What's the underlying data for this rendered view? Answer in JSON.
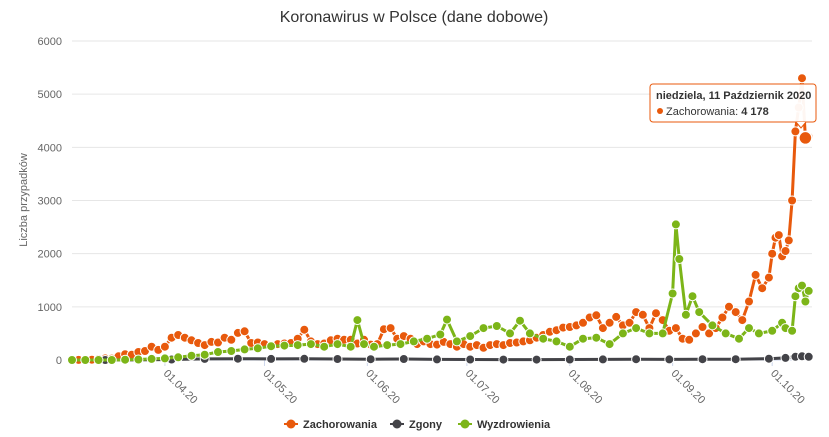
{
  "chart_data": {
    "type": "line",
    "title": "Koronawirus w Polsce (dane dobowe)",
    "ylabel": "Liczba przypadków",
    "xlabel": "",
    "x_range": [
      "2020-03-04",
      "2020-10-13"
    ],
    "ylim": [
      0,
      6000
    ],
    "y_ticks": [
      "0",
      "1000",
      "2000",
      "3000",
      "4000",
      "5000",
      "6000"
    ],
    "x_ticks": [
      {
        "label": "01.04.20",
        "date": "2020-04-01"
      },
      {
        "label": "01.05.20",
        "date": "2020-05-01"
      },
      {
        "label": "01.06.20",
        "date": "2020-06-01"
      },
      {
        "label": "01.07.20",
        "date": "2020-07-01"
      },
      {
        "label": "01.08.20",
        "date": "2020-08-01"
      },
      {
        "label": "01.09.20",
        "date": "2020-09-01"
      },
      {
        "label": "01.10.20",
        "date": "2020-10-01"
      }
    ],
    "grid": true,
    "legend_position": "bottom-center",
    "series": [
      {
        "name": "Zachorowania",
        "color": "#e8590c",
        "points": [
          [
            "2020-03-04",
            1
          ],
          [
            "2020-03-06",
            2
          ],
          [
            "2020-03-08",
            6
          ],
          [
            "2020-03-10",
            5
          ],
          [
            "2020-03-12",
            19
          ],
          [
            "2020-03-14",
            30
          ],
          [
            "2020-03-16",
            27
          ],
          [
            "2020-03-18",
            70
          ],
          [
            "2020-03-20",
            110
          ],
          [
            "2020-03-22",
            100
          ],
          [
            "2020-03-24",
            150
          ],
          [
            "2020-03-26",
            170
          ],
          [
            "2020-03-28",
            250
          ],
          [
            "2020-03-30",
            190
          ],
          [
            "2020-04-01",
            250
          ],
          [
            "2020-04-03",
            420
          ],
          [
            "2020-04-05",
            470
          ],
          [
            "2020-04-07",
            420
          ],
          [
            "2020-04-09",
            370
          ],
          [
            "2020-04-11",
            320
          ],
          [
            "2020-04-13",
            280
          ],
          [
            "2020-04-15",
            340
          ],
          [
            "2020-04-17",
            330
          ],
          [
            "2020-04-19",
            420
          ],
          [
            "2020-04-21",
            380
          ],
          [
            "2020-04-23",
            510
          ],
          [
            "2020-04-25",
            540
          ],
          [
            "2020-04-27",
            320
          ],
          [
            "2020-04-29",
            330
          ],
          [
            "2020-05-01",
            300
          ],
          [
            "2020-05-03",
            260
          ],
          [
            "2020-05-05",
            300
          ],
          [
            "2020-05-07",
            310
          ],
          [
            "2020-05-09",
            320
          ],
          [
            "2020-05-11",
            400
          ],
          [
            "2020-05-13",
            570
          ],
          [
            "2020-05-15",
            350
          ],
          [
            "2020-05-17",
            300
          ],
          [
            "2020-05-19",
            310
          ],
          [
            "2020-05-21",
            370
          ],
          [
            "2020-05-23",
            400
          ],
          [
            "2020-05-25",
            380
          ],
          [
            "2020-05-27",
            380
          ],
          [
            "2020-05-29",
            310
          ],
          [
            "2020-05-31",
            380
          ],
          [
            "2020-06-02",
            290
          ],
          [
            "2020-06-04",
            300
          ],
          [
            "2020-06-06",
            580
          ],
          [
            "2020-06-08",
            600
          ],
          [
            "2020-06-10",
            400
          ],
          [
            "2020-06-12",
            450
          ],
          [
            "2020-06-14",
            400
          ],
          [
            "2020-06-16",
            300
          ],
          [
            "2020-06-18",
            350
          ],
          [
            "2020-06-20",
            300
          ],
          [
            "2020-06-22",
            290
          ],
          [
            "2020-06-24",
            340
          ],
          [
            "2020-06-26",
            300
          ],
          [
            "2020-06-28",
            250
          ],
          [
            "2020-06-30",
            300
          ],
          [
            "2020-07-02",
            250
          ],
          [
            "2020-07-04",
            280
          ],
          [
            "2020-07-06",
            230
          ],
          [
            "2020-07-08",
            280
          ],
          [
            "2020-07-10",
            300
          ],
          [
            "2020-07-12",
            280
          ],
          [
            "2020-07-14",
            320
          ],
          [
            "2020-07-16",
            330
          ],
          [
            "2020-07-18",
            350
          ],
          [
            "2020-07-20",
            370
          ],
          [
            "2020-07-22",
            420
          ],
          [
            "2020-07-24",
            470
          ],
          [
            "2020-07-26",
            530
          ],
          [
            "2020-07-28",
            560
          ],
          [
            "2020-07-30",
            610
          ],
          [
            "2020-08-01",
            620
          ],
          [
            "2020-08-03",
            650
          ],
          [
            "2020-08-05",
            700
          ],
          [
            "2020-08-07",
            800
          ],
          [
            "2020-08-09",
            840
          ],
          [
            "2020-08-11",
            600
          ],
          [
            "2020-08-13",
            700
          ],
          [
            "2020-08-15",
            810
          ],
          [
            "2020-08-17",
            650
          ],
          [
            "2020-08-19",
            700
          ],
          [
            "2020-08-21",
            900
          ],
          [
            "2020-08-23",
            850
          ],
          [
            "2020-08-25",
            600
          ],
          [
            "2020-08-27",
            880
          ],
          [
            "2020-08-29",
            750
          ],
          [
            "2020-08-31",
            550
          ],
          [
            "2020-09-02",
            600
          ],
          [
            "2020-09-04",
            400
          ],
          [
            "2020-09-06",
            380
          ],
          [
            "2020-09-08",
            500
          ],
          [
            "2020-09-10",
            620
          ],
          [
            "2020-09-12",
            500
          ],
          [
            "2020-09-14",
            600
          ],
          [
            "2020-09-16",
            800
          ],
          [
            "2020-09-18",
            1000
          ],
          [
            "2020-09-20",
            900
          ],
          [
            "2020-09-22",
            750
          ],
          [
            "2020-09-24",
            1100
          ],
          [
            "2020-09-26",
            1600
          ],
          [
            "2020-09-28",
            1350
          ],
          [
            "2020-09-30",
            1550
          ],
          [
            "2020-10-01",
            2000
          ],
          [
            "2020-10-02",
            2300
          ],
          [
            "2020-10-03",
            2350
          ],
          [
            "2020-10-04",
            1950
          ],
          [
            "2020-10-05",
            2050
          ],
          [
            "2020-10-06",
            2250
          ],
          [
            "2020-10-07",
            3000
          ],
          [
            "2020-10-08",
            4300
          ],
          [
            "2020-10-09",
            4750
          ],
          [
            "2020-10-10",
            5300
          ],
          [
            "2020-10-11",
            4178
          ],
          [
            "2020-10-12",
            4200
          ]
        ]
      },
      {
        "name": "Zgony",
        "color": "#434348",
        "points": [
          [
            "2020-03-04",
            0
          ],
          [
            "2020-03-14",
            0
          ],
          [
            "2020-03-24",
            2
          ],
          [
            "2020-04-03",
            10
          ],
          [
            "2020-04-13",
            20
          ],
          [
            "2020-04-23",
            25
          ],
          [
            "2020-05-03",
            20
          ],
          [
            "2020-05-13",
            22
          ],
          [
            "2020-05-23",
            18
          ],
          [
            "2020-06-02",
            15
          ],
          [
            "2020-06-12",
            18
          ],
          [
            "2020-06-22",
            12
          ],
          [
            "2020-07-02",
            10
          ],
          [
            "2020-07-12",
            8
          ],
          [
            "2020-07-22",
            8
          ],
          [
            "2020-08-01",
            10
          ],
          [
            "2020-08-11",
            12
          ],
          [
            "2020-08-21",
            15
          ],
          [
            "2020-08-31",
            12
          ],
          [
            "2020-09-10",
            15
          ],
          [
            "2020-09-20",
            15
          ],
          [
            "2020-09-30",
            25
          ],
          [
            "2020-10-05",
            40
          ],
          [
            "2020-10-08",
            60
          ],
          [
            "2020-10-10",
            70
          ],
          [
            "2020-10-12",
            60
          ]
        ]
      },
      {
        "name": "Wyzdrowienia",
        "color": "#7cb518",
        "points": [
          [
            "2020-03-04",
            0
          ],
          [
            "2020-03-08",
            0
          ],
          [
            "2020-03-12",
            0
          ],
          [
            "2020-03-16",
            0
          ],
          [
            "2020-03-20",
            5
          ],
          [
            "2020-03-24",
            10
          ],
          [
            "2020-03-28",
            20
          ],
          [
            "2020-04-01",
            30
          ],
          [
            "2020-04-05",
            50
          ],
          [
            "2020-04-09",
            80
          ],
          [
            "2020-04-13",
            100
          ],
          [
            "2020-04-17",
            150
          ],
          [
            "2020-04-21",
            170
          ],
          [
            "2020-04-25",
            200
          ],
          [
            "2020-04-29",
            220
          ],
          [
            "2020-05-03",
            260
          ],
          [
            "2020-05-07",
            270
          ],
          [
            "2020-05-11",
            280
          ],
          [
            "2020-05-15",
            300
          ],
          [
            "2020-05-19",
            250
          ],
          [
            "2020-05-23",
            300
          ],
          [
            "2020-05-27",
            250
          ],
          [
            "2020-05-29",
            750
          ],
          [
            "2020-05-31",
            300
          ],
          [
            "2020-06-03",
            250
          ],
          [
            "2020-06-07",
            280
          ],
          [
            "2020-06-11",
            300
          ],
          [
            "2020-06-15",
            350
          ],
          [
            "2020-06-19",
            400
          ],
          [
            "2020-06-23",
            480
          ],
          [
            "2020-06-25",
            760
          ],
          [
            "2020-06-28",
            350
          ],
          [
            "2020-07-02",
            450
          ],
          [
            "2020-07-06",
            600
          ],
          [
            "2020-07-10",
            640
          ],
          [
            "2020-07-14",
            500
          ],
          [
            "2020-07-17",
            740
          ],
          [
            "2020-07-20",
            500
          ],
          [
            "2020-07-24",
            400
          ],
          [
            "2020-07-28",
            350
          ],
          [
            "2020-08-01",
            250
          ],
          [
            "2020-08-05",
            400
          ],
          [
            "2020-08-09",
            420
          ],
          [
            "2020-08-13",
            300
          ],
          [
            "2020-08-17",
            500
          ],
          [
            "2020-08-21",
            600
          ],
          [
            "2020-08-25",
            500
          ],
          [
            "2020-08-29",
            500
          ],
          [
            "2020-09-01",
            1250
          ],
          [
            "2020-09-02",
            2550
          ],
          [
            "2020-09-03",
            1900
          ],
          [
            "2020-09-05",
            850
          ],
          [
            "2020-09-07",
            1200
          ],
          [
            "2020-09-09",
            900
          ],
          [
            "2020-09-13",
            650
          ],
          [
            "2020-09-17",
            500
          ],
          [
            "2020-09-21",
            400
          ],
          [
            "2020-09-24",
            600
          ],
          [
            "2020-09-27",
            500
          ],
          [
            "2020-10-01",
            550
          ],
          [
            "2020-10-04",
            700
          ],
          [
            "2020-10-05",
            600
          ],
          [
            "2020-10-07",
            550
          ],
          [
            "2020-10-08",
            1200
          ],
          [
            "2020-10-09",
            1350
          ],
          [
            "2020-10-10",
            1400
          ],
          [
            "2020-10-11",
            1100
          ],
          [
            "2020-10-12",
            1300
          ]
        ]
      }
    ]
  },
  "tooltip": {
    "date_label": "niedziela, 11 Październik 2020",
    "series_label": "Zachorowania: ",
    "value_label": "4 178",
    "date": "2020-10-11",
    "value": 4178
  }
}
